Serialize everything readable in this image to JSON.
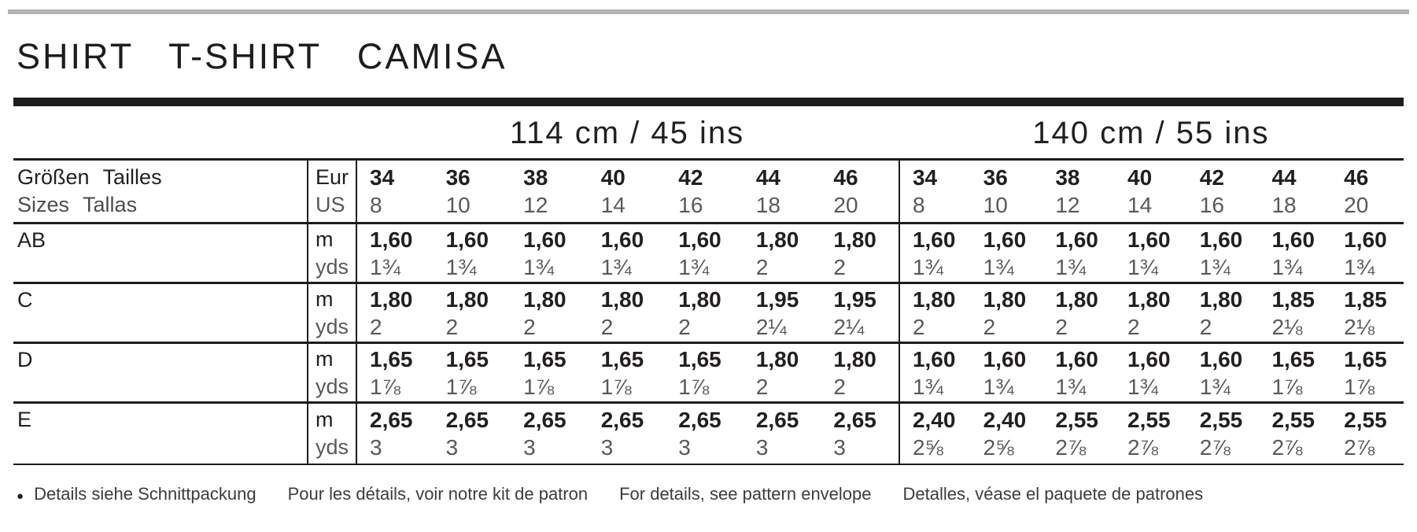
{
  "title": "SHIRT T-SHIRT CAMISA",
  "table": {
    "width_groups": [
      {
        "label": "114 cm / 45 ins"
      },
      {
        "label": "140 cm / 55 ins"
      }
    ],
    "size_header": {
      "label_line1": "Größen Tailles",
      "label_line2": "Sizes Tallas",
      "unit_line1": "Eur",
      "unit_line2": "US",
      "eur_sizes": [
        "34",
        "36",
        "38",
        "40",
        "42",
        "44",
        "46"
      ],
      "us_sizes": [
        "8",
        "10",
        "12",
        "14",
        "16",
        "18",
        "20"
      ]
    },
    "rows": [
      {
        "label": "AB",
        "unit_top": "m",
        "unit_bottom": "yds",
        "g1_m": [
          "1,60",
          "1,60",
          "1,60",
          "1,60",
          "1,60",
          "1,80",
          "1,80"
        ],
        "g1_yds": [
          "1¾",
          "1¾",
          "1¾",
          "1¾",
          "1¾",
          "2",
          "2"
        ],
        "g2_m": [
          "1,60",
          "1,60",
          "1,60",
          "1,60",
          "1,60",
          "1,60",
          "1,60"
        ],
        "g2_yds": [
          "1¾",
          "1¾",
          "1¾",
          "1¾",
          "1¾",
          "1¾",
          "1¾"
        ]
      },
      {
        "label": "C",
        "unit_top": "m",
        "unit_bottom": "yds",
        "g1_m": [
          "1,80",
          "1,80",
          "1,80",
          "1,80",
          "1,80",
          "1,95",
          "1,95"
        ],
        "g1_yds": [
          "2",
          "2",
          "2",
          "2",
          "2",
          "2¼",
          "2¼"
        ],
        "g2_m": [
          "1,80",
          "1,80",
          "1,80",
          "1,80",
          "1,80",
          "1,85",
          "1,85"
        ],
        "g2_yds": [
          "2",
          "2",
          "2",
          "2",
          "2",
          "2⅛",
          "2⅛"
        ]
      },
      {
        "label": "D",
        "unit_top": "m",
        "unit_bottom": "yds",
        "g1_m": [
          "1,65",
          "1,65",
          "1,65",
          "1,65",
          "1,65",
          "1,80",
          "1,80"
        ],
        "g1_yds": [
          "1⅞",
          "1⅞",
          "1⅞",
          "1⅞",
          "1⅞",
          "2",
          "2"
        ],
        "g2_m": [
          "1,60",
          "1,60",
          "1,60",
          "1,60",
          "1,60",
          "1,65",
          "1,65"
        ],
        "g2_yds": [
          "1¾",
          "1¾",
          "1¾",
          "1¾",
          "1¾",
          "1⅞",
          "1⅞"
        ]
      },
      {
        "label": "E",
        "unit_top": "m",
        "unit_bottom": "yds",
        "g1_m": [
          "2,65",
          "2,65",
          "2,65",
          "2,65",
          "2,65",
          "2,65",
          "2,65"
        ],
        "g1_yds": [
          "3",
          "3",
          "3",
          "3",
          "3",
          "3",
          "3"
        ],
        "g2_m": [
          "2,40",
          "2,40",
          "2,55",
          "2,55",
          "2,55",
          "2,55",
          "2,55"
        ],
        "g2_yds": [
          "2⅝",
          "2⅝",
          "2⅞",
          "2⅞",
          "2⅞",
          "2⅞",
          "2⅞"
        ]
      }
    ]
  },
  "footer": {
    "bullet": "●",
    "notes": [
      "Details siehe Schnittpackung",
      "Pour les détails, voir notre kit de patron",
      "For details, see pattern envelope",
      "Detalles, véase el paquete de patrones"
    ]
  },
  "colors": {
    "ink": "#231f20",
    "muted": "#58595b",
    "top_rule": "#b3b3b3"
  }
}
